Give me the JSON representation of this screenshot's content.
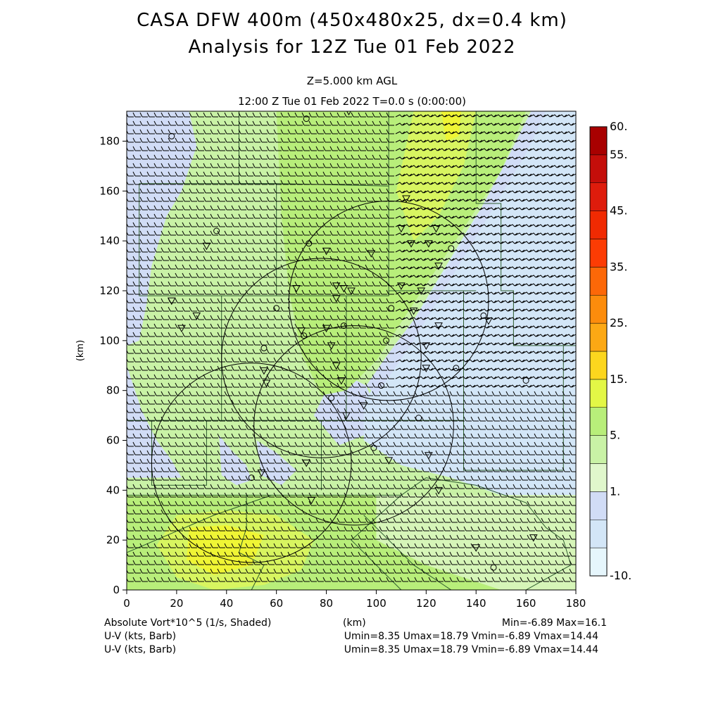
{
  "title": {
    "line1": "CASA DFW 400m (450x480x25, dx=0.4 km)",
    "line2": "Analysis for 12Z Tue 01 Feb 2022"
  },
  "subtitle": {
    "level": "Z=5.000 km AGL",
    "time": "12:00 Z Tue 01 Feb 2022    T=0.0 s (0:00:00)"
  },
  "axes": {
    "x_ticks": [
      "0",
      "20",
      "40",
      "60",
      "80",
      "100",
      "120",
      "140",
      "160",
      "180"
    ],
    "y_ticks": [
      "0",
      "20",
      "40",
      "60",
      "80",
      "100",
      "120",
      "140",
      "160",
      "180"
    ],
    "x_label": "(km)",
    "y_label": "(km)"
  },
  "colorbar": {
    "labels": [
      "60.",
      "55.",
      "45.",
      "35.",
      "25.",
      "15.",
      "5.",
      "1.",
      "-10."
    ],
    "colors": [
      "#e6f6fc",
      "#d3e6f7",
      "#d1dcf6",
      "#e0f7cc",
      "#c9f2a6",
      "#b8ee7a",
      "#e3f746",
      "#fcd61e",
      "#fca814",
      "#fc8c0c",
      "#fc6808",
      "#fc3c04",
      "#f02a02",
      "#de1c0c",
      "#c40e0a",
      "#a80000"
    ]
  },
  "field_colors": {
    "light_green": "#c9f2a6",
    "pale_green": "#d6f5b8",
    "green": "#b8ee7a",
    "yellow_green": "#d8f560",
    "yellow": "#eff535",
    "lavender": "#d1dcf6",
    "light_blue": "#d3e6f7"
  },
  "footer": {
    "field_label": "Absolute Vort*10^5 (1/s, Shaded)",
    "unit_label": "(km)",
    "minmax": "Min=-6.89 Max=16.1",
    "barb1_label": "U-V (kts, Barb)",
    "barb1_stats": "Umin=8.35 Umax=18.79 Vmin=-6.89 Vmax=14.44",
    "barb2_label": "U-V (kts, Barb)",
    "barb2_stats": "Umin=8.35 Umax=18.79 Vmin=-6.89 Vmax=14.44"
  }
}
